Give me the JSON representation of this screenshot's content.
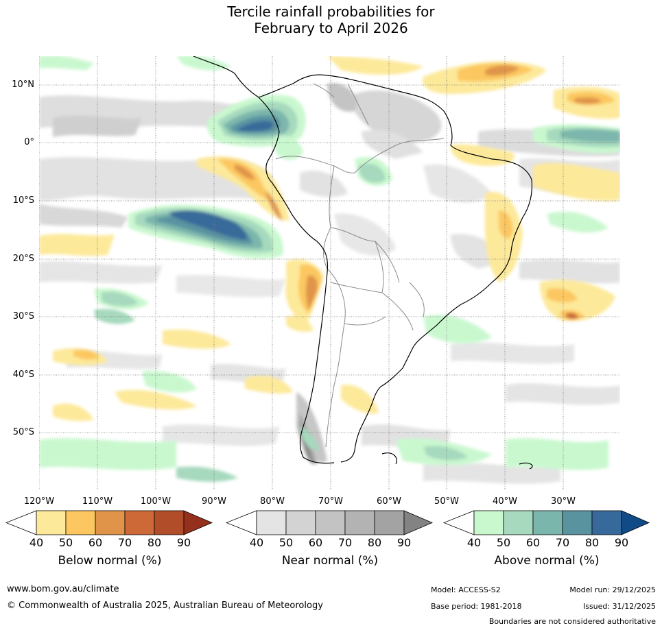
{
  "title": {
    "line1": "Tercile rainfall probabilities for",
    "line2": "February to April 2026"
  },
  "map": {
    "region": "South America",
    "lat_labels": [
      "10°N",
      "0°",
      "10°S",
      "20°S",
      "30°S",
      "40°S",
      "50°S"
    ],
    "lon_labels": [
      "120°W",
      "110°W",
      "100°W",
      "90°W",
      "80°W",
      "70°W",
      "60°W",
      "50°W",
      "40°W",
      "30°W"
    ]
  },
  "legend": {
    "below": {
      "title": "Below normal (%)",
      "ticks": [
        "40",
        "50",
        "60",
        "70",
        "80",
        "90"
      ],
      "colors": [
        "#ffffff",
        "#fde99a",
        "#fcc760",
        "#e0944a",
        "#cd6837",
        "#b24d2a",
        "#95301d"
      ]
    },
    "near": {
      "title": "Near normal (%)",
      "ticks": [
        "40",
        "50",
        "60",
        "70",
        "80",
        "90"
      ],
      "colors": [
        "#ffffff",
        "#e4e4e4",
        "#d3d3d3",
        "#c3c3c3",
        "#b3b3b3",
        "#a3a3a3",
        "#838383"
      ]
    },
    "above": {
      "title": "Above normal (%)",
      "ticks": [
        "40",
        "50",
        "60",
        "70",
        "80",
        "90"
      ],
      "colors": [
        "#ffffff",
        "#c9f8cf",
        "#a6d9bd",
        "#7bb6ac",
        "#5a93a0",
        "#376a9a",
        "#104a87"
      ]
    }
  },
  "footer": {
    "url": "www.bom.gov.au/climate",
    "copyright": "© Commonwealth of Australia 2025, Australian Bureau of Meteorology",
    "model": "Model: ACCESS-S2",
    "model_run": "Model run: 29/12/2025",
    "base_period": "Base period: 1981-2018",
    "issued": "Issued: 31/12/2025",
    "disclaimer": "Boundaries are not considered authoritative"
  }
}
